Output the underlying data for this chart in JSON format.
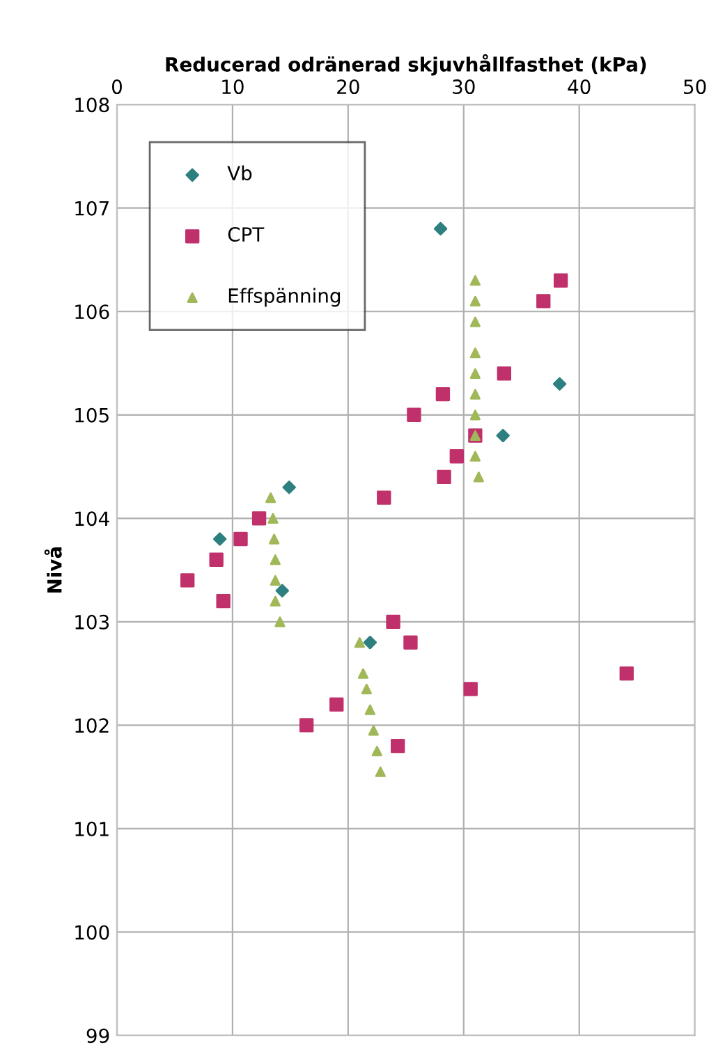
{
  "chart_data": {
    "type": "scatter",
    "xlabel": "Reducerad odränerad skjuvhållfasthet (kPa)",
    "ylabel": "Nivå",
    "xlim": [
      0,
      50
    ],
    "xticks": [
      0,
      10,
      20,
      30,
      40,
      50
    ],
    "ylim": [
      99,
      108
    ],
    "yticks": [
      99,
      100,
      101,
      102,
      103,
      104,
      105,
      106,
      107,
      108
    ],
    "grid": true,
    "legend": "top left",
    "series": [
      {
        "name": "Vb",
        "color": "#2e8080",
        "marker": "diamond",
        "x": [
          28.0,
          38.3,
          33.4,
          14.9,
          8.9,
          14.3,
          21.9
        ],
        "values": [
          106.8,
          105.3,
          104.8,
          104.3,
          103.8,
          103.3,
          102.8
        ]
      },
      {
        "name": "CPT",
        "color": "#c0306a",
        "marker": "square",
        "x": [
          38.4,
          36.9,
          33.5,
          28.2,
          25.7,
          31.0,
          29.4,
          28.3,
          23.1,
          12.3,
          10.7,
          8.6,
          6.1,
          9.2,
          23.9,
          25.4,
          30.6,
          44.1,
          19.0,
          16.4,
          24.3
        ],
        "values": [
          106.3,
          106.1,
          105.4,
          105.2,
          105.0,
          104.8,
          104.6,
          104.4,
          104.2,
          104.0,
          103.8,
          103.6,
          103.4,
          103.2,
          103.0,
          102.8,
          102.35,
          102.5,
          102.2,
          102.0,
          101.8
        ]
      },
      {
        "name": "Effspänning",
        "color": "#a0b858",
        "marker": "triangle",
        "x": [
          31.0,
          31.0,
          31.0,
          31.0,
          31.0,
          31.0,
          31.0,
          31.0,
          31.0,
          31.3,
          13.3,
          13.5,
          13.6,
          13.7,
          13.7,
          13.7,
          14.1,
          21.0,
          21.3,
          21.6,
          21.9,
          22.2,
          22.5,
          22.8
        ],
        "values": [
          106.3,
          106.1,
          105.9,
          105.6,
          105.4,
          105.2,
          105.0,
          104.8,
          104.6,
          104.4,
          104.2,
          104.0,
          103.8,
          103.6,
          103.4,
          103.2,
          103.0,
          102.8,
          102.5,
          102.35,
          102.15,
          101.95,
          101.75,
          101.55
        ]
      }
    ]
  }
}
